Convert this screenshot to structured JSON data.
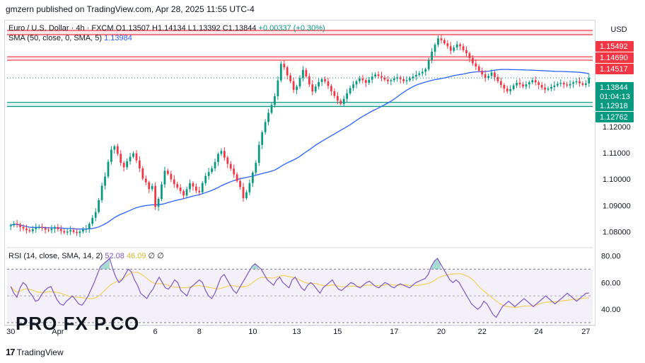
{
  "header": {
    "published": "gmzern published on TradingView.com, Apr 28, 2025 11:55 UTC-4"
  },
  "legend": {
    "symbol": "Euro / U.S. Dollar · 4h · FXCM",
    "open": "O1.13507",
    "high": "H1.14134",
    "low": "L1.13392",
    "close": "C1.13844",
    "change": "+0.00337 (+0.30%)",
    "sma_label": "SMA (50, close, 0, SMA, 5)",
    "sma_value": "1.13984"
  },
  "rsi_legend": {
    "label": "RSI (14, close, SMA, 14, 2)",
    "v1": "52.08",
    "v2": "46.09",
    "extra": "∅ ∅"
  },
  "price_axis": {
    "currency": "USD"
  },
  "watermark": {
    "text": "PRO FX P.CO"
  },
  "footer": {
    "logo": "TradingView"
  },
  "colors": {
    "up": "#089981",
    "down": "#f23645",
    "sma": "#2962ff",
    "rsi": "#7e57c2",
    "rsi_ma": "#f0d060"
  },
  "chart_data": [
    {
      "type": "candlestick",
      "title": "Euro / U.S. Dollar · 4h · FXCM",
      "ylim": [
        1.0745,
        1.16
      ],
      "x_ticks": [
        {
          "i": 0,
          "label": "30"
        },
        {
          "i": 15,
          "label": "Apr"
        },
        {
          "i": 46,
          "label": "6"
        },
        {
          "i": 60,
          "label": "8"
        },
        {
          "i": 77,
          "label": "10"
        },
        {
          "i": 91,
          "label": "13"
        },
        {
          "i": 104,
          "label": "15"
        },
        {
          "i": 122,
          "label": "17"
        },
        {
          "i": 137,
          "label": "20"
        },
        {
          "i": 150,
          "label": "22"
        },
        {
          "i": 168,
          "label": "24"
        },
        {
          "i": 183,
          "label": "27"
        }
      ],
      "y_ticks": [
        "1.12000",
        "1.11000",
        "1.10000",
        "1.09000",
        "1.08000"
      ],
      "price_labels": [
        {
          "price": 1.15492,
          "label": "1.15492",
          "color": "#f23645"
        },
        {
          "price": 1.1469,
          "label": "1.14690",
          "color": "#f23645"
        },
        {
          "price": 1.14517,
          "label": "1.14517",
          "color": "#f23645"
        },
        {
          "price": 1.13844,
          "label": "1.13844",
          "sub": "01:04:13",
          "color": "#089981"
        },
        {
          "price": 1.12918,
          "label": "1.12918",
          "color": "#089981"
        },
        {
          "price": 1.12762,
          "label": "1.12762",
          "color": "#089981"
        }
      ],
      "zones": [
        {
          "from": 1.1549,
          "to": 1.1565,
          "kind": "resistance"
        },
        {
          "from": 1.1452,
          "to": 1.1465,
          "kind": "resistance"
        },
        {
          "from": 1.1276,
          "to": 1.1292,
          "kind": "support"
        }
      ],
      "current_price": 1.13844,
      "closes": [
        1.0825,
        1.0831,
        1.0828,
        1.0818,
        1.0812,
        1.0806,
        1.0802,
        1.081,
        1.0816,
        1.0819,
        1.0814,
        1.0808,
        1.0806,
        1.0812,
        1.0818,
        1.081,
        1.0803,
        1.0797,
        1.0801,
        1.0806,
        1.0799,
        1.0795,
        1.0801,
        1.0808,
        1.0812,
        1.083,
        1.0853,
        1.0875,
        1.092,
        1.0975,
        1.101,
        1.1066,
        1.1112,
        1.1125,
        1.1096,
        1.1062,
        1.1045,
        1.1068,
        1.1085,
        1.1098,
        1.1071,
        1.1041,
        1.1002,
        1.0988,
        1.0962,
        1.0974,
        1.0895,
        1.0925,
        1.098,
        1.1032,
        1.102,
        1.0999,
        1.0981,
        1.0968,
        1.0955,
        1.0938,
        1.0962,
        1.0985,
        1.0972,
        1.0956,
        1.095,
        1.0985,
        1.1012,
        1.1027,
        1.1041,
        1.1065,
        1.1096,
        1.1107,
        1.1082,
        1.1058,
        1.104,
        1.1018,
        1.0993,
        1.097,
        1.0928,
        1.095,
        1.0985,
        1.1025,
        1.1062,
        1.113,
        1.1178,
        1.1217,
        1.1252,
        1.1282,
        1.1315,
        1.1375,
        1.1438,
        1.1425,
        1.1394,
        1.1372,
        1.1339,
        1.1352,
        1.1384,
        1.1415,
        1.139,
        1.136,
        1.1333,
        1.1352,
        1.1369,
        1.138,
        1.1372,
        1.1354,
        1.1334,
        1.1316,
        1.1298,
        1.1286,
        1.1305,
        1.1326,
        1.1346,
        1.136,
        1.1372,
        1.1382,
        1.1376,
        1.1366,
        1.1378,
        1.139,
        1.1398,
        1.1392,
        1.1386,
        1.1378,
        1.1372,
        1.1376,
        1.1382,
        1.1387,
        1.138,
        1.1372,
        1.1376,
        1.1383,
        1.139,
        1.1396,
        1.1402,
        1.1408,
        1.1418,
        1.1452,
        1.1484,
        1.1511,
        1.1535,
        1.1528,
        1.1516,
        1.1505,
        1.1488,
        1.15,
        1.1512,
        1.1505,
        1.149,
        1.1478,
        1.146,
        1.144,
        1.1428,
        1.1412,
        1.1398,
        1.1384,
        1.1392,
        1.1405,
        1.1388,
        1.1372,
        1.1358,
        1.1344,
        1.1334,
        1.1342,
        1.1356,
        1.1366,
        1.136,
        1.1352,
        1.136,
        1.1368,
        1.1376,
        1.1368,
        1.1358,
        1.1348,
        1.134,
        1.1344,
        1.135,
        1.1356,
        1.1362,
        1.1366,
        1.136,
        1.1356,
        1.1362,
        1.1368,
        1.1372,
        1.1364,
        1.1358,
        1.1364,
        1.13844
      ]
    },
    {
      "type": "line",
      "title": "RSI (14, close, SMA, 14, 2)",
      "ylim": [
        30,
        85
      ],
      "y_ticks": [
        "80.00",
        "60.00",
        "40.00"
      ],
      "bands": {
        "upper": 70,
        "middle": 50,
        "lower": 30
      },
      "series": [
        {
          "values": [
            57,
            52,
            49,
            56,
            60,
            58,
            53,
            50,
            46,
            47,
            51,
            54,
            56,
            57,
            52,
            47,
            44,
            43,
            46,
            48,
            50,
            47,
            44,
            43,
            46,
            50,
            55,
            60,
            66,
            72,
            74,
            76,
            78,
            70,
            64,
            60,
            62,
            66,
            70,
            68,
            62,
            58,
            52,
            50,
            48,
            52,
            55,
            60,
            64,
            60,
            56,
            55,
            58,
            62,
            60,
            54,
            52,
            50,
            56,
            58,
            60,
            62,
            60,
            54,
            50,
            48,
            52,
            58,
            64,
            66,
            62,
            58,
            54,
            52,
            56,
            60,
            64,
            68,
            72,
            74,
            72,
            70,
            66,
            62,
            60,
            58,
            62,
            64,
            60,
            58,
            56,
            62,
            64,
            60,
            56,
            54,
            58,
            60,
            58,
            55,
            52,
            56,
            58,
            60,
            62,
            58,
            55,
            54,
            56,
            58,
            60,
            59,
            57,
            56,
            58,
            60,
            61,
            59,
            57,
            56,
            58,
            60,
            59,
            57,
            56,
            58,
            59,
            58,
            57,
            56,
            58,
            60,
            61,
            62,
            63,
            66,
            72,
            76,
            78,
            74,
            70,
            66,
            62,
            60,
            62,
            60,
            56,
            52,
            48,
            44,
            42,
            40,
            42,
            46,
            44,
            40,
            36,
            34,
            38,
            42,
            44,
            46,
            44,
            42,
            44,
            46,
            48,
            46,
            44,
            42,
            44,
            46,
            48,
            50,
            48,
            46,
            44,
            46,
            48,
            50,
            52,
            50,
            48,
            46,
            48,
            50,
            52,
            52.08
          ]
        }
      ]
    }
  ]
}
